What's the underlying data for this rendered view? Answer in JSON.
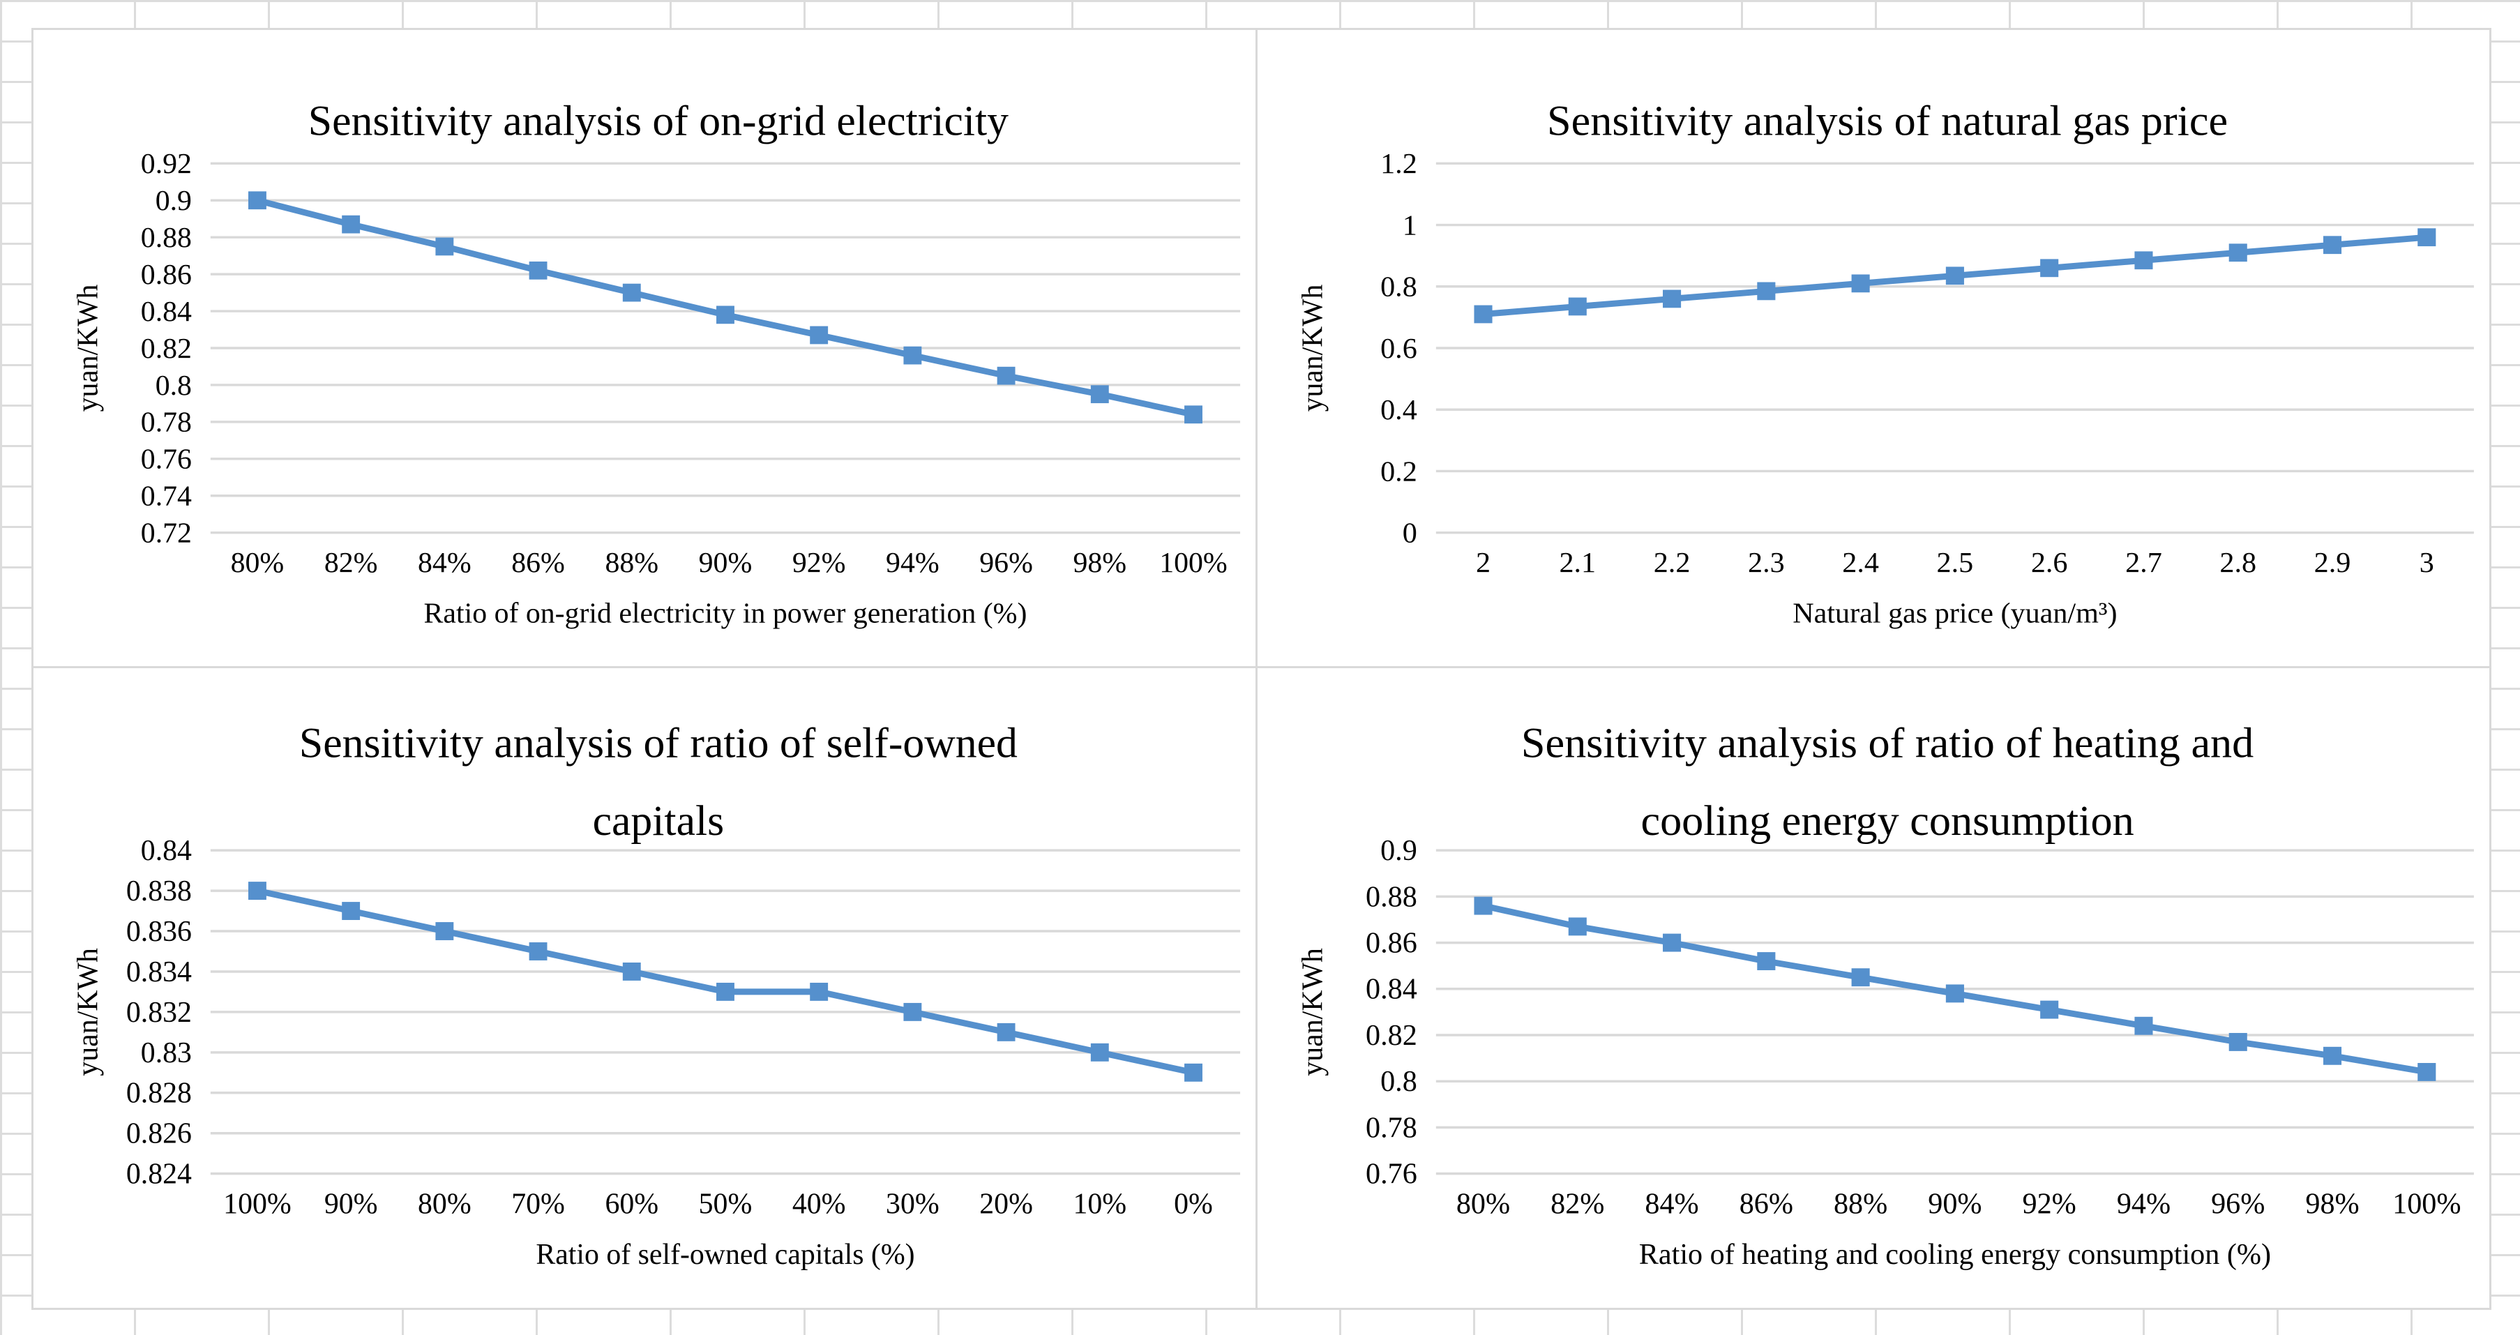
{
  "page": {
    "background_color": "#ffffff",
    "spreadsheet_grid_color": "#dcdcdc",
    "panel_border_color": "#d9d9d9",
    "text_color": "#000000"
  },
  "chart_style": {
    "series_color": "#5590cd",
    "gridline_color": "#d9d9d9",
    "marker": "square",
    "grid": true,
    "legend": "none"
  },
  "chart_data": [
    {
      "type": "line",
      "title": "Sensitivity analysis of on-grid electricity",
      "title_lines": [
        "Sensitivity analysis of on-grid electricity"
      ],
      "categories": [
        "80%",
        "82%",
        "84%",
        "86%",
        "88%",
        "90%",
        "92%",
        "94%",
        "96%",
        "98%",
        "100%"
      ],
      "values": [
        0.9,
        0.887,
        0.875,
        0.862,
        0.85,
        0.838,
        0.827,
        0.816,
        0.805,
        0.795,
        0.784
      ],
      "xlabel": "Ratio of on-grid electricity in power generation (%)",
      "ylabel": "yuan/KWh",
      "ylim": [
        0.72,
        0.92
      ],
      "ytick_labels": [
        "0.72",
        "0.74",
        "0.76",
        "0.78",
        "0.8",
        "0.82",
        "0.84",
        "0.86",
        "0.88",
        "0.9",
        "0.92"
      ],
      "grid": true,
      "legend": "none"
    },
    {
      "type": "line",
      "title": "Sensitivity analysis of natural gas price",
      "title_lines": [
        "Sensitivity analysis of natural gas price"
      ],
      "categories": [
        "2",
        "2.1",
        "2.2",
        "2.3",
        "2.4",
        "2.5",
        "2.6",
        "2.7",
        "2.8",
        "2.9",
        "3"
      ],
      "values": [
        0.71,
        0.735,
        0.76,
        0.785,
        0.81,
        0.835,
        0.86,
        0.885,
        0.91,
        0.935,
        0.96
      ],
      "xlabel": "Natural gas price (yuan/m³)",
      "ylabel": "yuan/KWh",
      "ylim": [
        0,
        1.2
      ],
      "ytick_labels": [
        "0",
        "0.2",
        "0.4",
        "0.6",
        "0.8",
        "1",
        "1.2"
      ],
      "grid": true,
      "legend": "none"
    },
    {
      "type": "line",
      "title": "Sensitivity analysis of ratio of self-owned capitals",
      "title_lines": [
        "Sensitivity analysis of ratio of self-owned",
        "capitals"
      ],
      "categories": [
        "100%",
        "90%",
        "80%",
        "70%",
        "60%",
        "50%",
        "40%",
        "30%",
        "20%",
        "10%",
        "0%"
      ],
      "values": [
        0.838,
        0.837,
        0.836,
        0.835,
        0.834,
        0.833,
        0.833,
        0.832,
        0.831,
        0.83,
        0.829
      ],
      "xlabel": "Ratio of self-owned capitals (%)",
      "ylabel": "yuan/KWh",
      "ylim": [
        0.824,
        0.84
      ],
      "ytick_labels": [
        "0.824",
        "0.826",
        "0.828",
        "0.83",
        "0.832",
        "0.834",
        "0.836",
        "0.838",
        "0.84"
      ],
      "grid": true,
      "legend": "none"
    },
    {
      "type": "line",
      "title": "Sensitivity analysis of ratio of heating and cooling energy consumption",
      "title_lines": [
        "Sensitivity analysis of ratio of heating and",
        "cooling energy consumption"
      ],
      "categories": [
        "80%",
        "82%",
        "84%",
        "86%",
        "88%",
        "90%",
        "92%",
        "94%",
        "96%",
        "98%",
        "100%"
      ],
      "values": [
        0.876,
        0.867,
        0.86,
        0.852,
        0.845,
        0.838,
        0.831,
        0.824,
        0.817,
        0.811,
        0.804
      ],
      "xlabel": "Ratio of heating and cooling energy consumption (%)",
      "ylabel": "yuan/KWh",
      "ylim": [
        0.76,
        0.9
      ],
      "ytick_labels": [
        "0.76",
        "0.78",
        "0.8",
        "0.82",
        "0.84",
        "0.86",
        "0.88",
        "0.9"
      ],
      "grid": true,
      "legend": "none"
    }
  ]
}
